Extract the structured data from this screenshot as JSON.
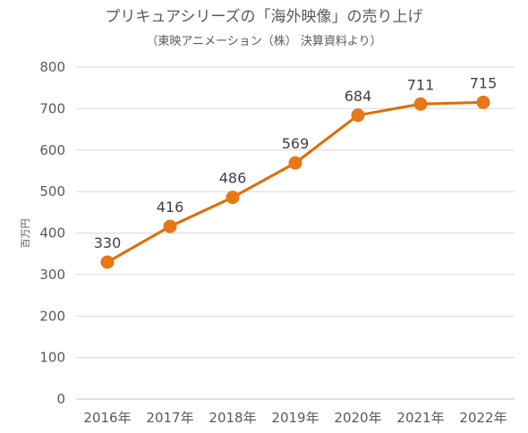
{
  "chart_data": {
    "type": "line",
    "title": "プリキュアシリーズの「海外映像」の売り上げ",
    "subtitle": "（東映アニメーション（株） 決算資料より）",
    "xlabel": "",
    "ylabel": "百万円",
    "categories": [
      "2016年",
      "2017年",
      "2018年",
      "2019年",
      "2020年",
      "2021年",
      "2022年"
    ],
    "series": [
      {
        "values": [
          330,
          416,
          486,
          569,
          684,
          711,
          715
        ]
      }
    ],
    "ylim": [
      0,
      800
    ],
    "yticks": [
      0,
      100,
      200,
      300,
      400,
      500,
      600,
      700,
      800
    ],
    "data_labels": [
      "330",
      "416",
      "486",
      "569",
      "684",
      "711",
      "715"
    ],
    "grid": true,
    "legend": "none",
    "colors": {
      "line": "#E06C00",
      "marker": "#E97716"
    }
  }
}
